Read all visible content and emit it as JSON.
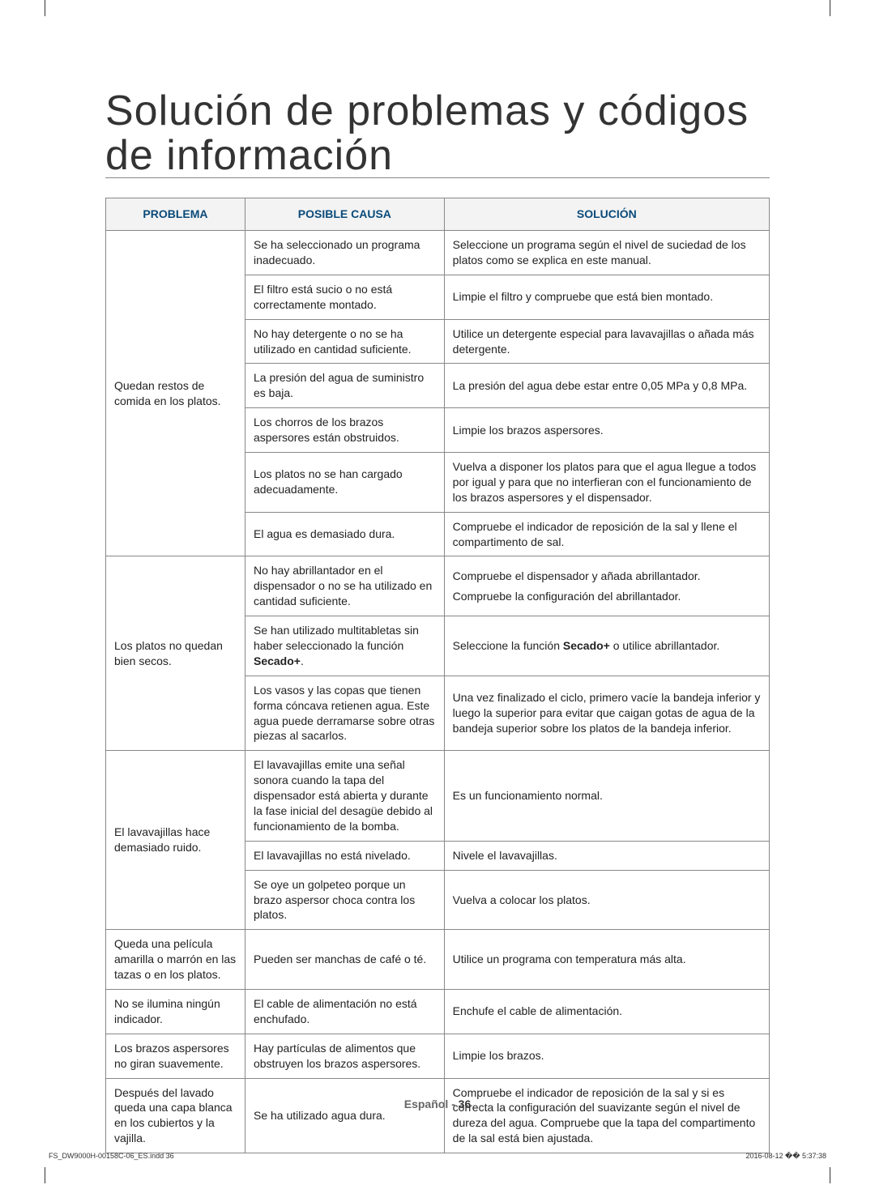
{
  "page": {
    "title": "Solución de problemas y códigos de información",
    "footer_lang": "Español - ",
    "footer_page": "36",
    "indd_left": "FS_DW9000H-00158C-06_ES.indd   36",
    "indd_right": "2016-08-12   �� 5:37:38"
  },
  "headers": {
    "problema": "PROBLEMA",
    "causa": "POSIBLE CAUSA",
    "solucion": "SOLUCIÓN"
  },
  "sections": [
    {
      "problem": "Quedan restos de comida en los platos.",
      "rows": [
        {
          "cause": "Se ha seleccionado un programa inadecuado.",
          "solution": "Seleccione un programa según el nivel de suciedad de los platos como se explica en este manual."
        },
        {
          "cause": "El filtro está sucio o no está correctamente montado.",
          "solution": "Limpie el filtro y compruebe que está bien montado."
        },
        {
          "cause": "No hay detergente o no se ha utilizado en cantidad suficiente.",
          "solution": "Utilice un detergente especial para lavavajillas o añada más detergente."
        },
        {
          "cause": "La presión del agua de suministro es baja.",
          "solution": "La presión del agua debe estar entre 0,05 MPa y 0,8 MPa."
        },
        {
          "cause": "Los chorros de los brazos aspersores están obstruidos.",
          "solution": "Limpie los brazos aspersores."
        },
        {
          "cause": "Los platos no se han cargado adecuadamente.",
          "solution": "Vuelva a disponer los platos para que el agua llegue a todos por igual y para que no interfieran con el funcionamiento de los brazos aspersores y el dispensador."
        },
        {
          "cause": "El agua es demasiado dura.",
          "solution": "Compruebe el indicador de reposición de la sal y llene el compartimento de sal."
        }
      ]
    },
    {
      "problem": "Los platos no quedan bien secos.",
      "rows": [
        {
          "cause": "No hay abrillantador en el dispensador o no se ha utilizado en cantidad suficiente.",
          "solution": "Compruebe el dispensador y añada abrillantador.\nCompruebe la configuración del abrillantador."
        },
        {
          "cause_html": "Se han utilizado multitabletas sin haber seleccionado la función <b>Secado+</b>.",
          "solution_html": "Seleccione la función <b>Secado+</b> o utilice abrillantador."
        },
        {
          "cause": "Los vasos y las copas que tienen forma cóncava retienen agua. Este agua puede derramarse sobre otras piezas al sacarlos.",
          "solution": "Una vez finalizado el ciclo, primero vacíe la bandeja inferior y luego la superior para evitar que caigan gotas de agua de la bandeja superior sobre los platos de la bandeja inferior."
        }
      ]
    },
    {
      "problem": "El lavavajillas hace demasiado ruido.",
      "rows": [
        {
          "cause": "El lavavajillas emite una señal sonora cuando la tapa del dispensador está abierta y durante la fase inicial del desagüe debido al funcionamiento de la bomba.",
          "solution": "Es un funcionamiento normal."
        },
        {
          "cause": "El lavavajillas no está nivelado.",
          "solution": "Nivele el lavavajillas."
        },
        {
          "cause": "Se oye un golpeteo porque un brazo aspersor choca contra los platos.",
          "solution": "Vuelva a colocar los platos."
        }
      ]
    },
    {
      "problem": "Queda una película amarilla o marrón en las tazas o en los platos.",
      "rows": [
        {
          "cause": "Pueden ser manchas de café o té.",
          "solution": "Utilice un programa con temperatura más alta."
        }
      ]
    },
    {
      "problem": "No se ilumina ningún indicador.",
      "rows": [
        {
          "cause": "El cable de alimentación no está enchufado.",
          "solution": "Enchufe el cable de alimentación."
        }
      ]
    },
    {
      "problem": "Los brazos aspersores no giran suavemente.",
      "rows": [
        {
          "cause": "Hay partículas de alimentos que obstruyen los brazos aspersores.",
          "solution": "Limpie los brazos."
        }
      ]
    },
    {
      "problem": "Después del lavado queda una capa blanca en los cubiertos y la vajilla.",
      "rows": [
        {
          "cause": "Se ha utilizado agua dura.",
          "solution": "Compruebe el indicador de reposición de la sal y si es correcta la configuración del suavizante según el nivel de dureza del agua. Compruebe que la tapa del compartimento de la sal está bien ajustada."
        }
      ]
    }
  ]
}
